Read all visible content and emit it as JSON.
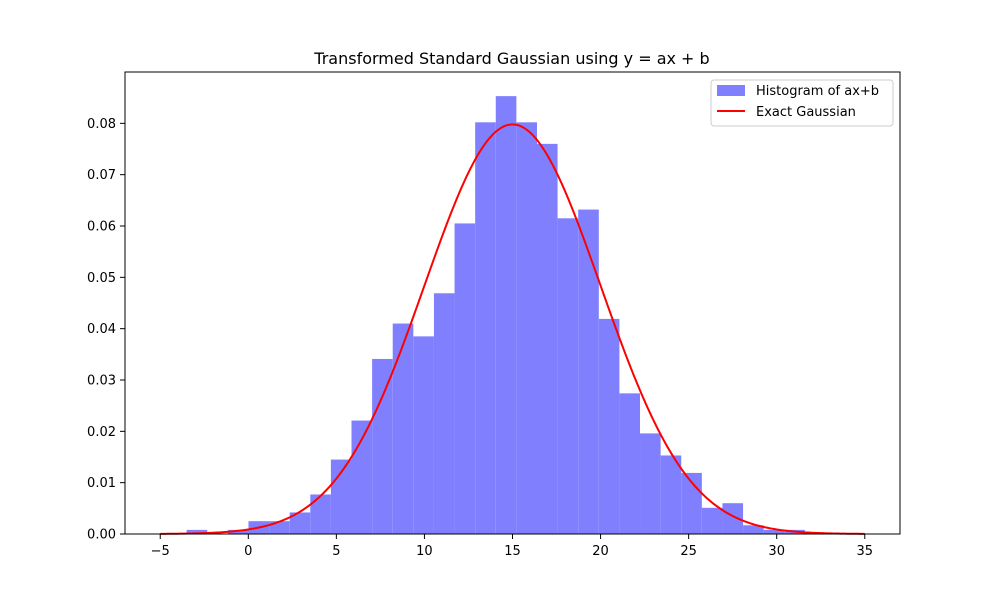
{
  "chart_data": {
    "type": "bar",
    "title": "Transformed Standard Gaussian using y = ax + b",
    "xlabel": "",
    "ylabel": "",
    "xlim": [
      -7,
      37
    ],
    "ylim": [
      0,
      0.09
    ],
    "xticks": [
      -5,
      0,
      5,
      10,
      15,
      20,
      25,
      30,
      35
    ],
    "yticks": [
      0.0,
      0.01,
      0.02,
      0.03,
      0.04,
      0.05,
      0.06,
      0.07,
      0.08
    ],
    "xtick_labels": [
      "−5",
      "0",
      "5",
      "10",
      "15",
      "20",
      "25",
      "30",
      "35"
    ],
    "ytick_labels": [
      "0.00",
      "0.01",
      "0.02",
      "0.03",
      "0.04",
      "0.05",
      "0.06",
      "0.07",
      "0.08"
    ],
    "grid": false,
    "legend_position": "top-right",
    "histogram": {
      "name": "Histogram of ax+b",
      "color": "#8080ff",
      "bin_edges": [
        -3.5,
        -2.33,
        -1.16,
        0.01,
        1.18,
        2.35,
        3.52,
        4.69,
        5.86,
        7.03,
        8.2,
        9.37,
        10.54,
        11.71,
        12.88,
        14.05,
        15.22,
        16.39,
        17.56,
        18.73,
        19.9,
        21.07,
        22.24,
        23.41,
        24.58,
        25.75,
        26.92,
        28.09,
        29.26,
        30.43,
        31.6
      ],
      "values": [
        0.0008,
        0.0,
        0.0008,
        0.0025,
        0.0025,
        0.0042,
        0.0077,
        0.0145,
        0.0221,
        0.0341,
        0.041,
        0.0385,
        0.0469,
        0.0605,
        0.0802,
        0.0853,
        0.0802,
        0.076,
        0.0615,
        0.0632,
        0.0419,
        0.0274,
        0.0196,
        0.0153,
        0.0119,
        0.0051,
        0.006,
        0.0017,
        0.0008,
        0.0008
      ]
    },
    "curve": {
      "name": "Exact Gaussian",
      "color": "#ff0000",
      "function": "normal_pdf",
      "mean": 15,
      "std": 5,
      "x_range": [
        -5,
        35
      ]
    }
  }
}
